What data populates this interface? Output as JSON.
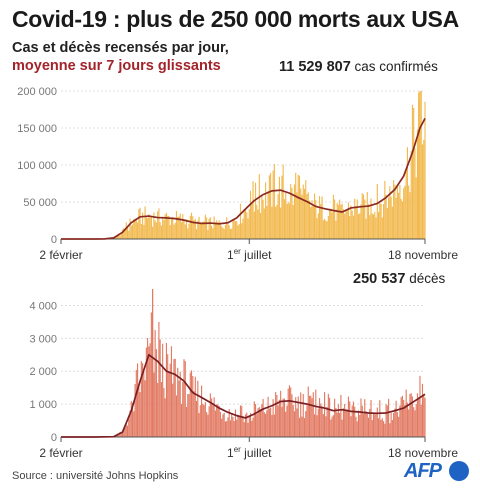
{
  "header": {
    "title": "Covid-19 : plus de 250 000 morts aux USA",
    "subtitle_line1": "Cas et décès recensés par jour,",
    "subtitle_line2": "moyenne sur 7 jours glissants"
  },
  "cases_stat": {
    "value": "11 529 807",
    "label": "cas confirmés"
  },
  "deaths_stat": {
    "value": "250 537",
    "label": "décès"
  },
  "footer": {
    "source": "Source : université Johns Hopkins",
    "logo_text": "AFP"
  },
  "colors": {
    "cases_bar": "#f2b94e",
    "cases_line": "#8a2a22",
    "deaths_bar": "#e27a63",
    "deaths_line": "#7a1f24",
    "afp_blue": "#1e63c4"
  },
  "chart_data": [
    {
      "type": "bar",
      "name": "cas",
      "ylim": [
        0,
        200000
      ],
      "yticks": [
        0,
        50000,
        100000,
        150000,
        200000
      ],
      "ytick_labels": [
        "0",
        "50 000",
        "100 000",
        "150 000",
        "200 000"
      ],
      "x_tick_labels": [
        {
          "pre": "2 février",
          "sup": "",
          "post": ""
        },
        {
          "pre": "1",
          "sup": "er",
          "post": " juillet"
        },
        {
          "pre": "18 novembre",
          "sup": "",
          "post": ""
        }
      ],
      "x_range": [
        "2020-02-02",
        "2020-11-18"
      ],
      "x_ticks": [
        "2020-02-02",
        "2020-07-01",
        "2020-11-18"
      ],
      "weekly_avg": {
        "date": [
          "2020-02-02",
          "2020-02-16",
          "2020-03-01",
          "2020-03-08",
          "2020-03-15",
          "2020-03-22",
          "2020-03-29",
          "2020-04-05",
          "2020-04-12",
          "2020-04-19",
          "2020-04-26",
          "2020-05-03",
          "2020-05-10",
          "2020-05-17",
          "2020-05-24",
          "2020-05-31",
          "2020-06-07",
          "2020-06-14",
          "2020-06-21",
          "2020-06-28",
          "2020-07-05",
          "2020-07-12",
          "2020-07-19",
          "2020-07-26",
          "2020-08-02",
          "2020-08-09",
          "2020-08-16",
          "2020-08-23",
          "2020-08-30",
          "2020-09-06",
          "2020-09-13",
          "2020-09-20",
          "2020-09-27",
          "2020-10-04",
          "2020-10-11",
          "2020-10-18",
          "2020-10-25",
          "2020-11-01",
          "2020-11-08",
          "2020-11-14",
          "2020-11-18"
        ],
        "value": [
          0,
          0,
          0,
          200,
          1500,
          9000,
          22000,
          30000,
          31000,
          29000,
          28500,
          27500,
          25500,
          22500,
          21000,
          21500,
          20500,
          22000,
          28500,
          40500,
          52000,
          60000,
          65000,
          66000,
          62000,
          56000,
          50500,
          44000,
          41000,
          38500,
          36500,
          42000,
          43500,
          44500,
          48000,
          56000,
          67000,
          85000,
          117000,
          150000,
          163000
        ]
      },
      "annotated_peak": {
        "date": "2020-11-13",
        "value": 198000
      }
    },
    {
      "type": "bar",
      "name": "décès",
      "ylim": [
        0,
        4500
      ],
      "yticks": [
        0,
        1000,
        2000,
        3000,
        4000
      ],
      "ytick_labels": [
        "0",
        "1 000",
        "2 000",
        "3 000",
        "4 000"
      ],
      "x_tick_labels": [
        {
          "pre": "2 février",
          "sup": "",
          "post": ""
        },
        {
          "pre": "1",
          "sup": "er",
          "post": " juillet"
        },
        {
          "pre": "18 novembre",
          "sup": "",
          "post": ""
        }
      ],
      "x_range": [
        "2020-02-02",
        "2020-11-18"
      ],
      "x_ticks": [
        "2020-02-02",
        "2020-07-01",
        "2020-11-18"
      ],
      "weekly_avg": {
        "date": [
          "2020-02-02",
          "2020-02-29",
          "2020-03-15",
          "2020-03-22",
          "2020-03-29",
          "2020-04-05",
          "2020-04-12",
          "2020-04-19",
          "2020-04-26",
          "2020-05-03",
          "2020-05-10",
          "2020-05-17",
          "2020-05-24",
          "2020-05-31",
          "2020-06-07",
          "2020-06-14",
          "2020-06-21",
          "2020-06-28",
          "2020-07-05",
          "2020-07-12",
          "2020-07-19",
          "2020-07-26",
          "2020-08-02",
          "2020-08-09",
          "2020-08-16",
          "2020-08-23",
          "2020-08-30",
          "2020-09-06",
          "2020-09-13",
          "2020-09-20",
          "2020-09-27",
          "2020-10-04",
          "2020-10-11",
          "2020-10-18",
          "2020-10-25",
          "2020-11-01",
          "2020-11-08",
          "2020-11-14",
          "2020-11-18"
        ],
        "value": [
          0,
          0,
          10,
          150,
          800,
          1700,
          2500,
          2300,
          2000,
          1900,
          1700,
          1350,
          1200,
          1050,
          880,
          750,
          650,
          580,
          700,
          850,
          950,
          1080,
          1100,
          1050,
          1000,
          930,
          880,
          800,
          830,
          780,
          760,
          730,
          720,
          730,
          800,
          880,
          1050,
          1200,
          1300
        ]
      },
      "annotated_peak": {
        "date": "2020-04-15",
        "value": 4500
      }
    }
  ]
}
